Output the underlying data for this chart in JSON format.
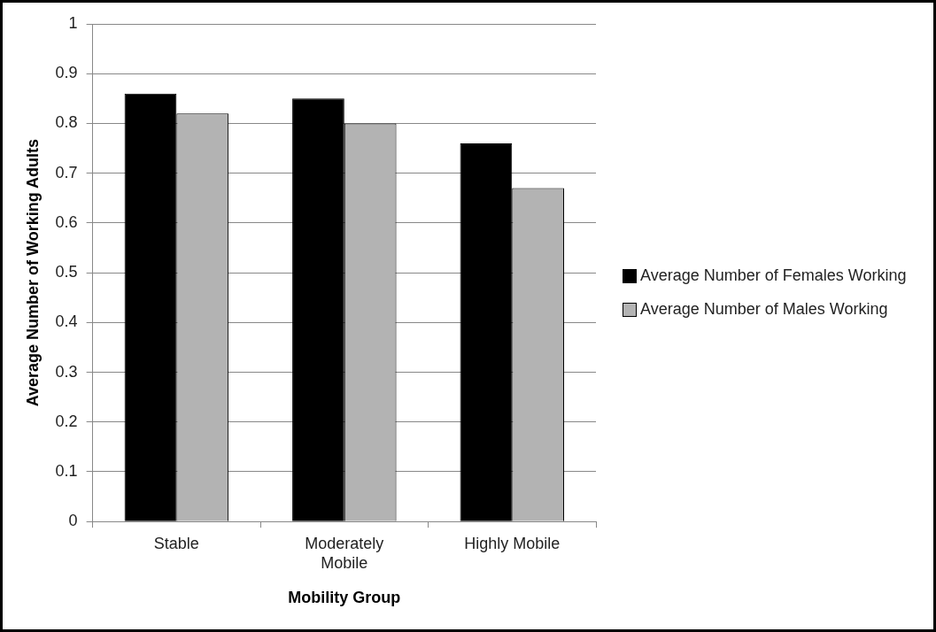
{
  "chart_data": {
    "type": "bar",
    "xlabel": "Mobility Group",
    "ylabel": "Average Number of Working Adults",
    "categories": [
      "Stable",
      "Moderately Mobile",
      "Highly Mobile"
    ],
    "series": [
      {
        "name": "Average Number of Females Working",
        "color": "#000000",
        "values": [
          0.86,
          0.85,
          0.76
        ]
      },
      {
        "name": "Average Number of Males Working",
        "color": "#b3b3b3",
        "values": [
          0.82,
          0.8,
          0.67
        ]
      }
    ],
    "ylim": [
      0,
      1
    ],
    "yticks": [
      0,
      0.1,
      0.2,
      0.3,
      0.4,
      0.5,
      0.6,
      0.7,
      0.8,
      0.9,
      1
    ],
    "grid": "y",
    "legend": "right"
  }
}
